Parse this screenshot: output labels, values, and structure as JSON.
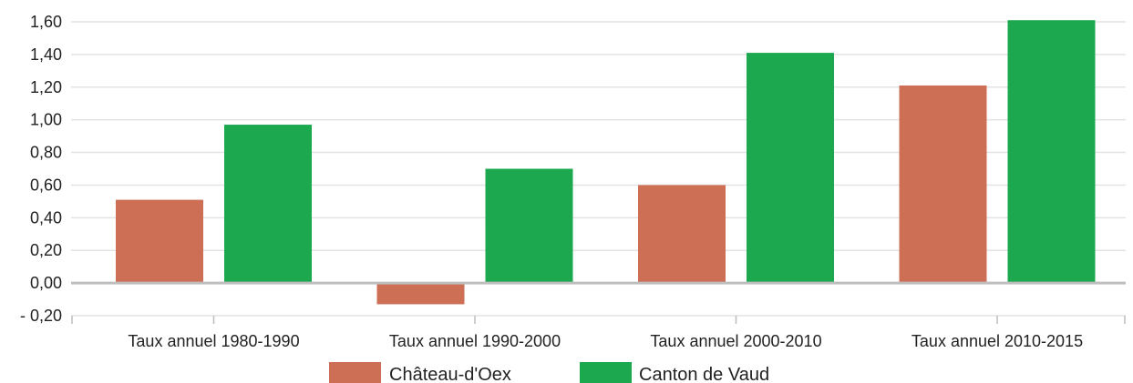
{
  "chart_data": {
    "type": "bar",
    "categories": [
      "Taux annuel 1980-1990",
      "Taux annuel 1990-2000",
      "Taux annuel 2000-2010",
      "Taux annuel 2010-2015"
    ],
    "series": [
      {
        "name": "Château-d'Oex",
        "color": "#cd6f55",
        "values": [
          0.51,
          -0.13,
          0.6,
          1.21
        ]
      },
      {
        "name": "Canton de Vaud",
        "color": "#1ba84e",
        "values": [
          0.97,
          0.7,
          1.41,
          1.61
        ]
      }
    ],
    "ylim": [
      -0.2,
      1.6
    ],
    "yticks": [
      -0.2,
      0,
      0.2,
      0.4,
      0.6,
      0.8,
      1.0,
      1.2,
      1.4,
      1.6
    ],
    "ytick_labels": [
      "- 0,20",
      "0,00",
      "0,20",
      "0,40",
      "0,60",
      "0,80",
      "1,00",
      "1,20",
      "1,40",
      "1,60"
    ],
    "grid": true,
    "legend_position": "bottom"
  }
}
